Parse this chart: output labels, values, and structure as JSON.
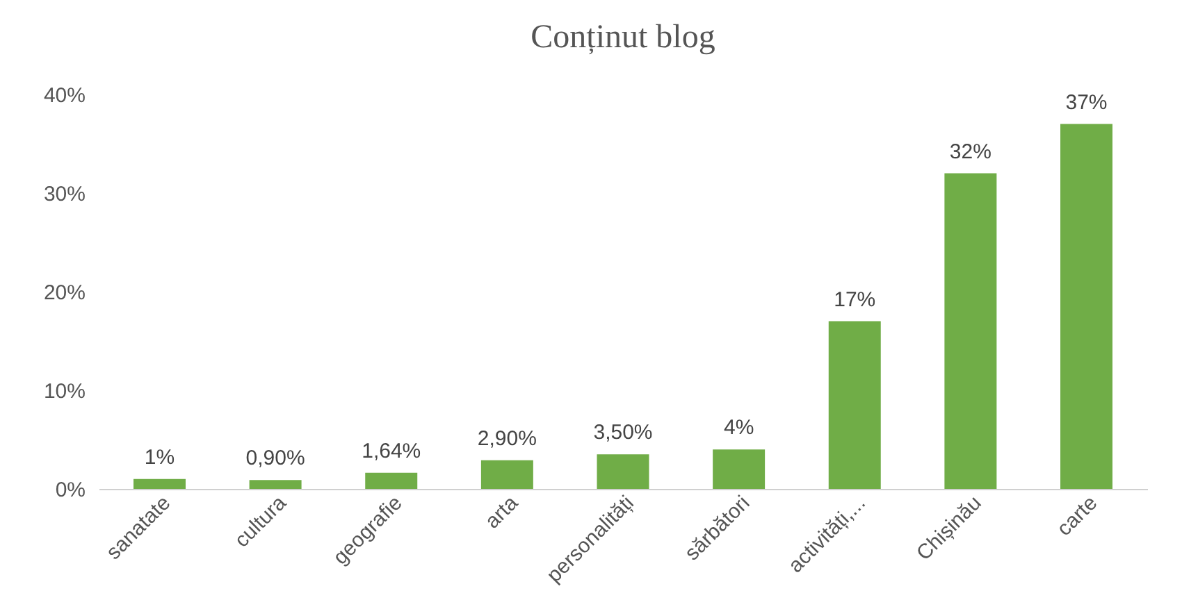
{
  "chart_data": {
    "type": "bar",
    "title": "Conținut blog",
    "categories": [
      "sanatate",
      "cultura",
      "geografie",
      "arta",
      "personalități",
      "sărbători",
      "activități,...",
      "Chișinău",
      "carte"
    ],
    "values": [
      1,
      0.9,
      1.64,
      2.9,
      3.5,
      4,
      17,
      32,
      37
    ],
    "value_labels": [
      "1%",
      "0,90%",
      "1,64%",
      "2,90%",
      "3,50%",
      "4%",
      "17%",
      "32%",
      "37%"
    ],
    "color": "#70ad47",
    "ylim": [
      0,
      40
    ],
    "yticks": [
      {
        "value": 0,
        "label": "0%"
      },
      {
        "value": 10,
        "label": "10%"
      },
      {
        "value": 20,
        "label": "20%"
      },
      {
        "value": 30,
        "label": "30%"
      },
      {
        "value": 40,
        "label": "40%"
      }
    ],
    "grid": false
  }
}
